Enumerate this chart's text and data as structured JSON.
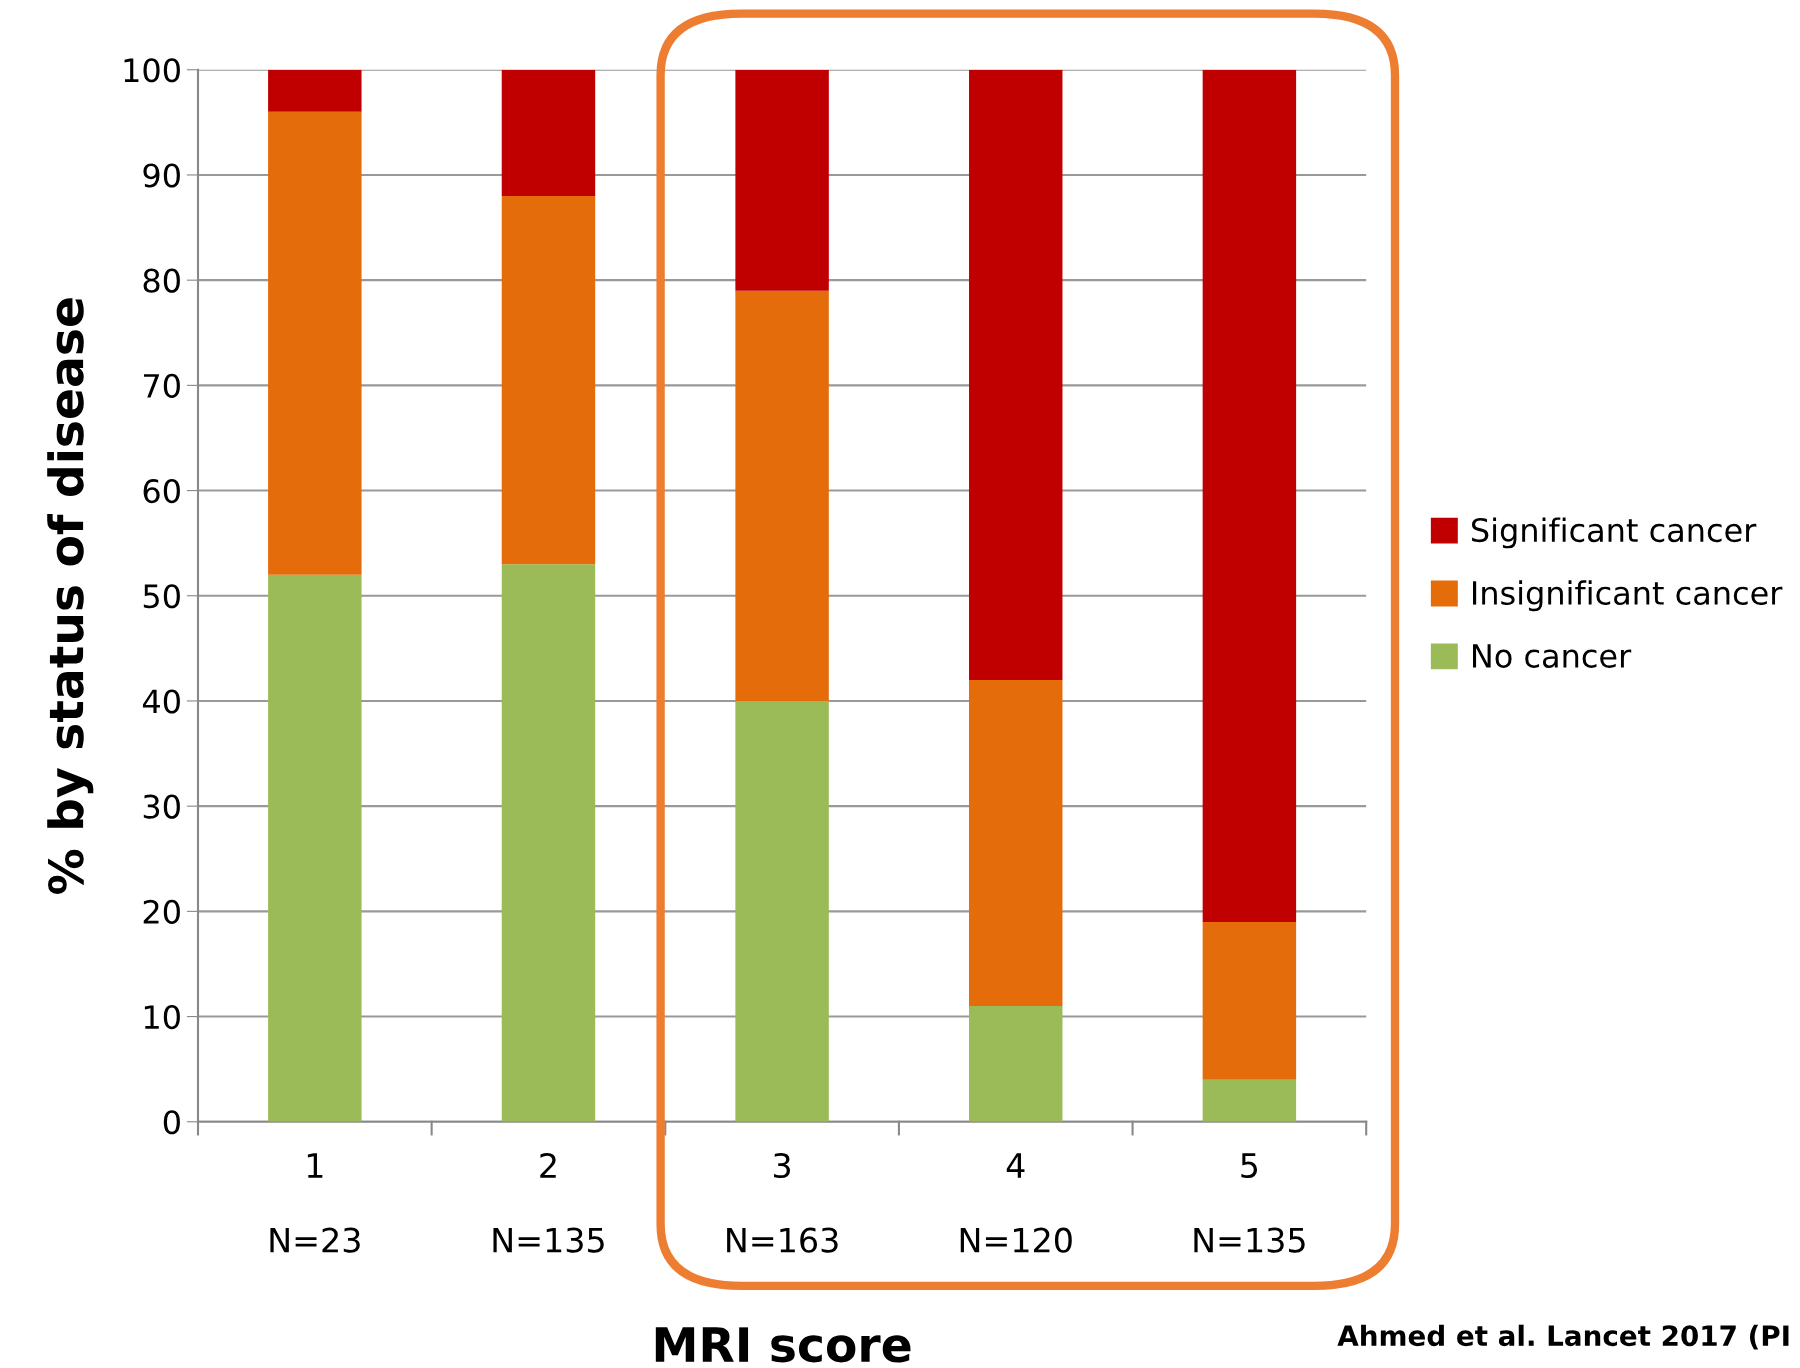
{
  "chart_data": {
    "type": "bar",
    "stacked": true,
    "xlabel": "MRI score",
    "ylabel": "% by status of disease",
    "categories": [
      "1\n\nN=23",
      "2\n\nN=135",
      "3\n\nN=163",
      "4\n\nN=120",
      "5\n\nN=135"
    ],
    "series": [
      {
        "name": "No cancer",
        "color": "#9bbb59",
        "values": [
          52,
          53,
          40,
          11,
          4
        ]
      },
      {
        "name": "Insignificant cancer",
        "color": "#e46c0a",
        "values": [
          44,
          35,
          39,
          31,
          15
        ]
      },
      {
        "name": "Significant cancer",
        "color": "#c00000",
        "values": [
          4,
          12,
          21,
          58,
          81
        ]
      }
    ],
    "ylim": [
      0,
      100
    ],
    "yticks": [
      0,
      10,
      20,
      30,
      40,
      50,
      60,
      70,
      80,
      90,
      100
    ],
    "grid": "y",
    "legend": "right",
    "annotations": [
      "Ahmed et al. Lancet 2017 (PI"
    ]
  }
}
